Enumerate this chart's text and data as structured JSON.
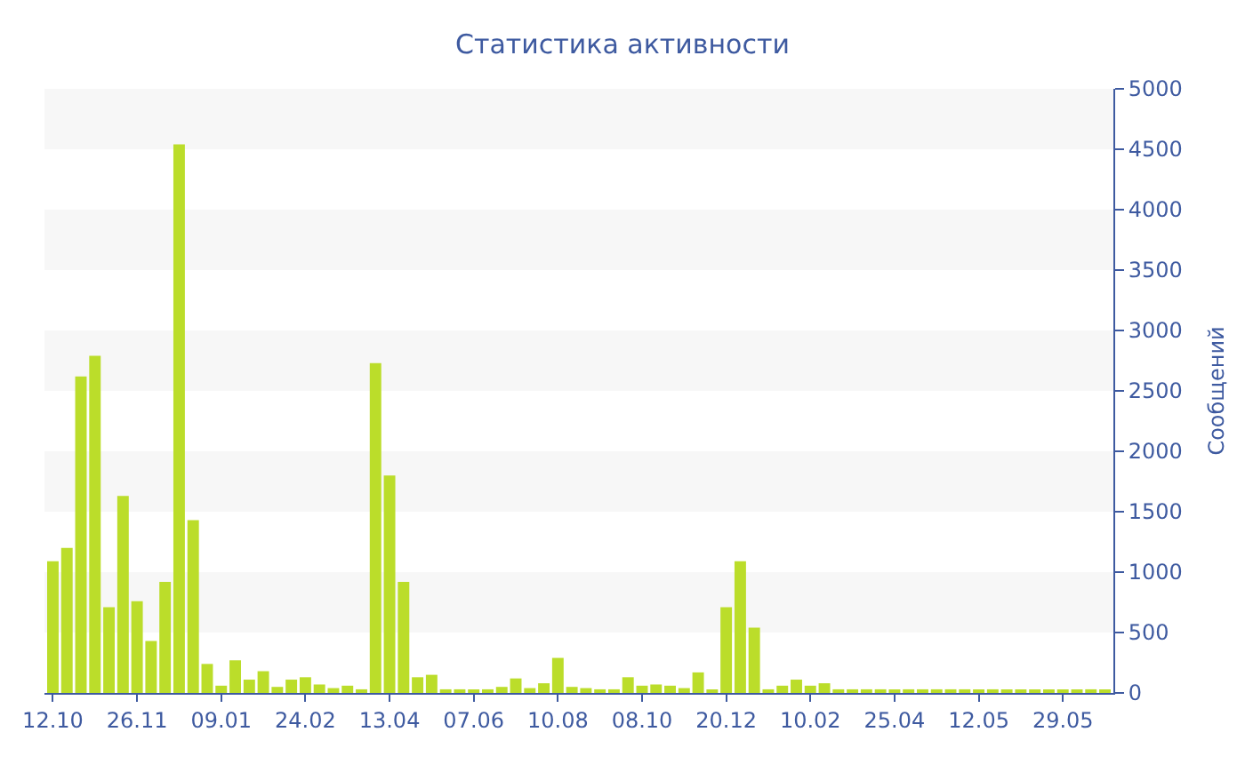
{
  "chart_data": {
    "type": "bar",
    "title": "Статистика активности",
    "ylabel": "Сообщений",
    "categories": [
      "12.10",
      null,
      null,
      null,
      null,
      null,
      "26.11",
      null,
      null,
      null,
      null,
      null,
      "09.01",
      null,
      null,
      null,
      null,
      null,
      "24.02",
      null,
      null,
      null,
      null,
      null,
      "13.04",
      null,
      null,
      null,
      null,
      null,
      "07.06",
      null,
      null,
      null,
      null,
      null,
      "10.08",
      null,
      null,
      null,
      null,
      null,
      "08.10",
      null,
      null,
      null,
      null,
      null,
      "20.12",
      null,
      null,
      null,
      null,
      null,
      "10.02",
      null,
      null,
      null,
      null,
      null,
      "25.04",
      null,
      null,
      null,
      null,
      null,
      "12.05",
      null,
      null,
      null,
      null,
      null,
      "29.05",
      null,
      null,
      null
    ],
    "values": [
      1090,
      1200,
      2620,
      2790,
      710,
      1630,
      760,
      430,
      920,
      4540,
      1430,
      240,
      60,
      270,
      110,
      180,
      50,
      110,
      130,
      70,
      40,
      60,
      30,
      2730,
      1800,
      920,
      130,
      150,
      30,
      30,
      20,
      30,
      50,
      120,
      40,
      80,
      290,
      50,
      40,
      30,
      30,
      130,
      60,
      70,
      60,
      40,
      170,
      20,
      710,
      1090,
      540,
      30,
      60,
      110,
      60,
      80,
      30,
      30,
      30,
      30,
      20,
      30,
      30,
      30,
      30,
      30,
      20,
      30,
      20,
      20,
      20,
      20,
      20,
      20,
      30,
      20
    ],
    "color": "#bbdd2a",
    "ylim": [
      0,
      5000
    ],
    "yticks": [
      0,
      500,
      1000,
      1500,
      2000,
      2500,
      3000,
      3500,
      4000,
      4500,
      5000
    ],
    "bands": [
      {
        "axis": "y",
        "from": 500,
        "to": 1000,
        "color": "#f7f7f7"
      },
      {
        "axis": "y",
        "from": 1500,
        "to": 2000,
        "color": "#f7f7f7"
      },
      {
        "axis": "y",
        "from": 2500,
        "to": 3000,
        "color": "#f7f7f7"
      },
      {
        "axis": "y",
        "from": 3500,
        "to": 4000,
        "color": "#f7f7f7"
      },
      {
        "axis": "y",
        "from": 4500,
        "to": 5000,
        "color": "#f7f7f7"
      }
    ],
    "grid": false,
    "legend": false
  }
}
